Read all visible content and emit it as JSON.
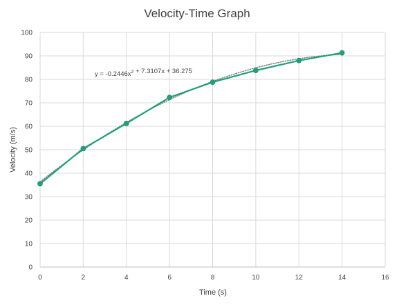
{
  "chart_data": {
    "type": "scatter",
    "title": "Velocity-Time Graph",
    "xlabel": "Time (s)",
    "ylabel": "Velocity (m/s)",
    "xlim": [
      0,
      16
    ],
    "ylim": [
      0,
      100
    ],
    "x_ticks": [
      0,
      2,
      4,
      6,
      8,
      10,
      12,
      14,
      16
    ],
    "y_ticks": [
      0,
      10,
      20,
      30,
      40,
      50,
      60,
      70,
      80,
      90,
      100
    ],
    "grid": true,
    "series": [
      {
        "x": [
          0,
          2,
          4,
          6,
          8,
          10,
          12,
          14
        ],
        "y": [
          35.5,
          50.5,
          61.2,
          72.3,
          78.8,
          83.8,
          88.0,
          91.3
        ],
        "color": "#21A07B",
        "connected": true,
        "markers": true
      }
    ],
    "trendline": {
      "type": "polynomial-order-2",
      "coefficients": [
        -0.2446,
        7.3107,
        36.275
      ],
      "color": "#7F7F7F",
      "style": "dotted",
      "equation_label": "y = -0.2446x² + 7.3107x + 36.275"
    }
  }
}
